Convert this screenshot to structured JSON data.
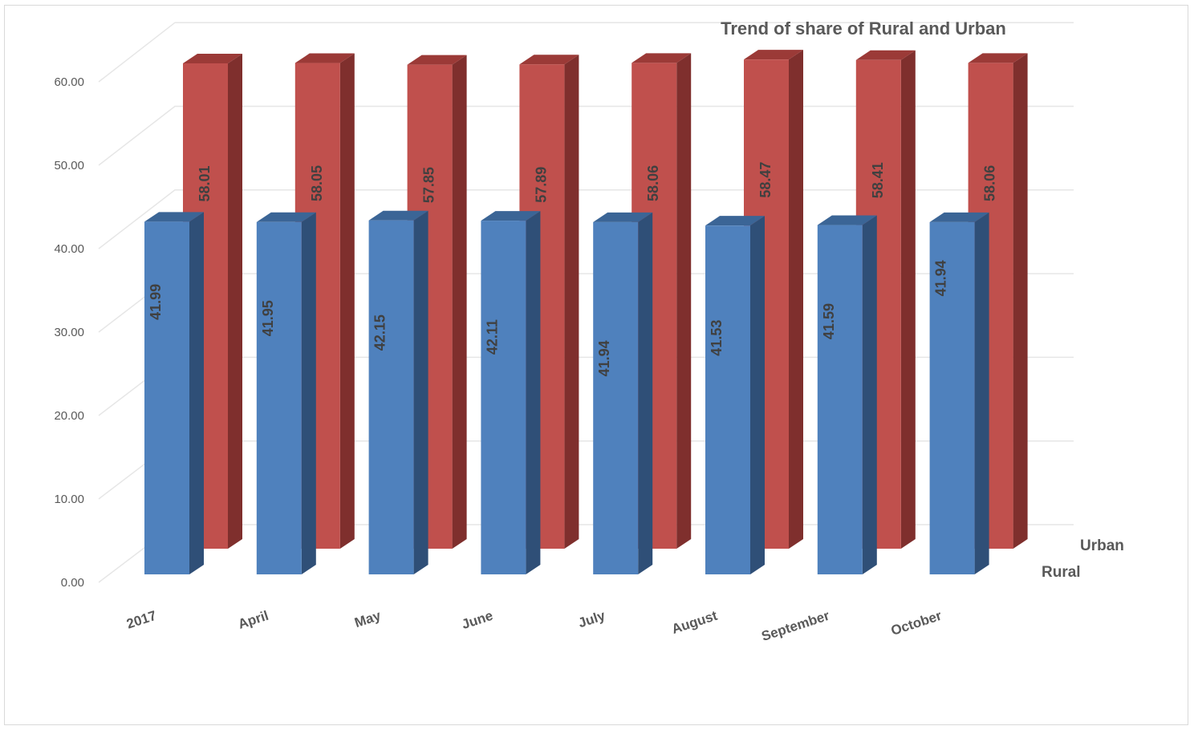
{
  "chart_data": {
    "type": "bar",
    "title": "Trend of  share of Rural and Urban",
    "categories": [
      "2017",
      "April",
      "May",
      "June",
      "July",
      "August",
      "September",
      "October"
    ],
    "series": [
      {
        "name": "Rural",
        "values": [
          41.99,
          41.95,
          42.15,
          42.11,
          41.94,
          41.53,
          41.59,
          41.94
        ]
      },
      {
        "name": "Urban",
        "values": [
          58.01,
          58.05,
          57.85,
          57.89,
          58.06,
          58.47,
          58.41,
          58.06
        ]
      }
    ],
    "ylim": [
      0,
      60
    ],
    "y_ticks": [
      "0.00",
      "10.00",
      "20.00",
      "30.00",
      "40.00",
      "50.00",
      "60.00"
    ],
    "xlabel": "",
    "ylabel": "",
    "grid": true,
    "style": "3d-column",
    "colors": {
      "Rural": "#4f81bd",
      "Urban": "#c0504d"
    }
  }
}
